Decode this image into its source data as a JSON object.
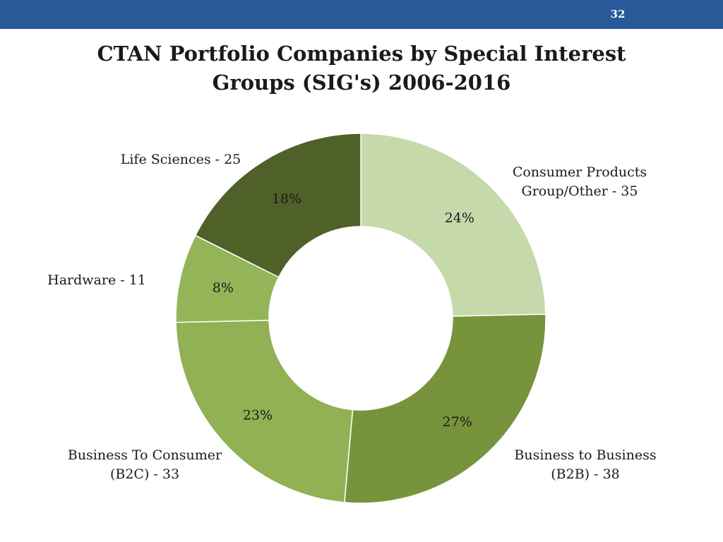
{
  "page_number": "32",
  "title_lines": [
    "CTAN Portfolio Companies by Special Interest",
    "Groups (SIG's) 2006-2016"
  ],
  "chart_data": {
    "type": "pie",
    "donut": true,
    "title": "CTAN Portfolio Companies by Special Interest Groups (SIG's) 2006-2016",
    "categories": [
      "Consumer Products Group/Other",
      "Business to Business (B2B)",
      "Business To Consumer (B2C)",
      "Hardware",
      "Life Sciences"
    ],
    "values": [
      35,
      38,
      33,
      11,
      25
    ],
    "percent_labels": [
      "24%",
      "27%",
      "23%",
      "8%",
      "18%"
    ],
    "category_labels": [
      [
        "Consumer Products",
        "Group/Other - 35"
      ],
      [
        "Business to Business",
        "(B2B) - 38"
      ],
      [
        "Business To Consumer",
        "(B2C) - 33"
      ],
      [
        "Hardware - 11"
      ],
      [
        "Life Sciences - 25"
      ]
    ],
    "colors": [
      "#c6d9ab",
      "#77933c",
      "#92b054",
      "#93b557",
      "#4f6128"
    ],
    "percent_label_colors": [
      "#1a1a1a",
      "#1a1a1a",
      "#1a1a1a",
      "#1a1a1a",
      "#e6e6e6"
    ],
    "start_angle_deg": 0,
    "direction": "clockwise"
  }
}
